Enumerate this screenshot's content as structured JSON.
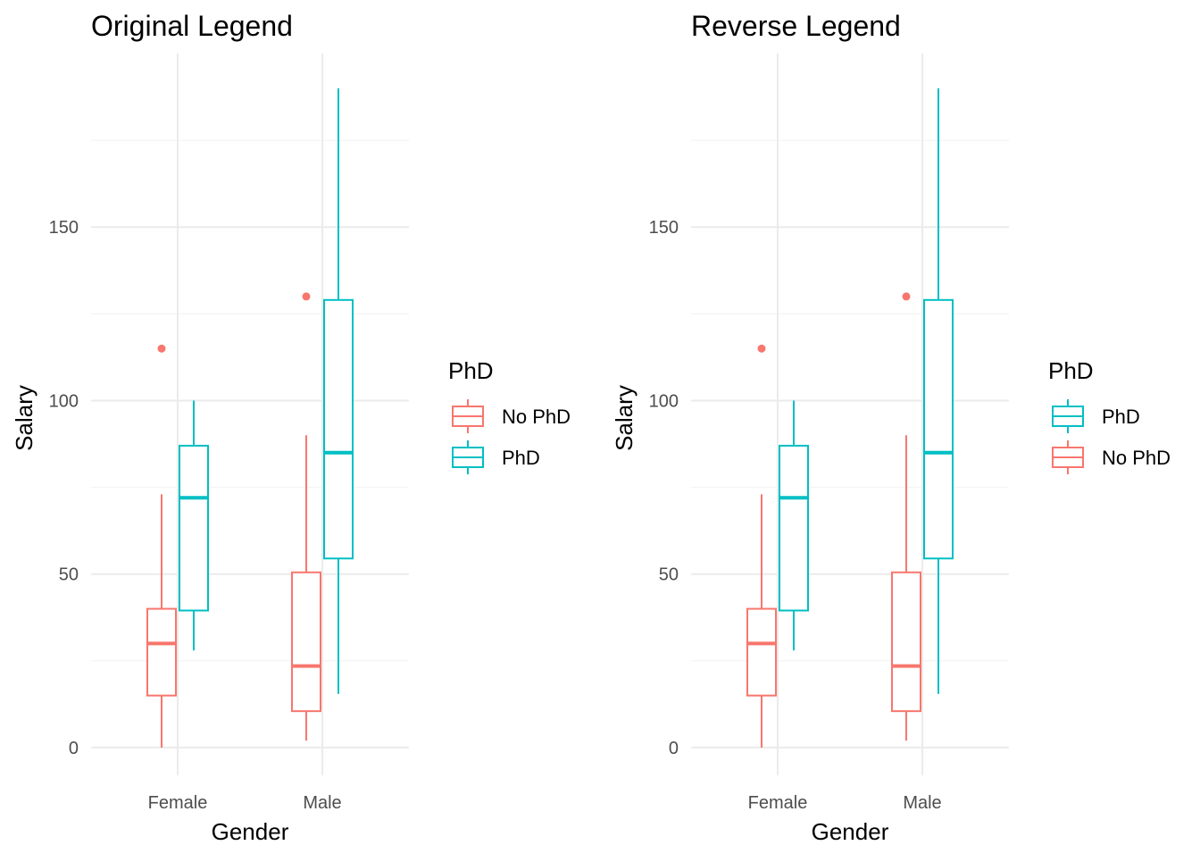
{
  "colors": {
    "no_phd": "#F8766D",
    "phd": "#00BFC4",
    "grid_major": "#EBEBEB",
    "grid_minor": "#F4F4F4",
    "tick_text": "#4D4D4D",
    "title_text": "#000000"
  },
  "chart_data": [
    {
      "type": "boxplot",
      "title": "Original Legend",
      "xlabel": "Gender",
      "ylabel": "Salary",
      "categories": [
        "Female",
        "Male"
      ],
      "ylim": [
        -8,
        200
      ],
      "yticks": [
        0,
        50,
        100,
        150
      ],
      "ytick_labels": [
        "0",
        "50",
        "100",
        "150"
      ],
      "grid": true,
      "legend": {
        "title": "PhD",
        "position": "right",
        "entries": [
          {
            "label": "No PhD",
            "series": "no_phd"
          },
          {
            "label": "PhD",
            "series": "phd"
          }
        ]
      },
      "series": [
        {
          "name": "No PhD",
          "key": "no_phd",
          "boxes": [
            {
              "category": "Female",
              "whisker_low": 0,
              "q1": 15,
              "median": 30,
              "q3": 40,
              "whisker_high": 73,
              "outliers": [
                115
              ]
            },
            {
              "category": "Male",
              "whisker_low": 2,
              "q1": 10.5,
              "median": 23.5,
              "q3": 50.5,
              "whisker_high": 90,
              "outliers": [
                130
              ]
            }
          ]
        },
        {
          "name": "PhD",
          "key": "phd",
          "boxes": [
            {
              "category": "Female",
              "whisker_low": 28,
              "q1": 39.5,
              "median": 72,
              "q3": 87,
              "whisker_high": 100,
              "outliers": []
            },
            {
              "category": "Male",
              "whisker_low": 15.5,
              "q1": 54.5,
              "median": 85,
              "q3": 129,
              "whisker_high": 190,
              "outliers": []
            }
          ]
        }
      ]
    },
    {
      "type": "boxplot",
      "title": "Reverse Legend",
      "xlabel": "Gender",
      "ylabel": "Salary",
      "categories": [
        "Female",
        "Male"
      ],
      "ylim": [
        -8,
        200
      ],
      "yticks": [
        0,
        50,
        100,
        150
      ],
      "ytick_labels": [
        "0",
        "50",
        "100",
        "150"
      ],
      "grid": true,
      "legend": {
        "title": "PhD",
        "position": "right",
        "entries": [
          {
            "label": "PhD",
            "series": "phd"
          },
          {
            "label": "No PhD",
            "series": "no_phd"
          }
        ]
      },
      "series": [
        {
          "name": "No PhD",
          "key": "no_phd",
          "boxes": [
            {
              "category": "Female",
              "whisker_low": 0,
              "q1": 15,
              "median": 30,
              "q3": 40,
              "whisker_high": 73,
              "outliers": [
                115
              ]
            },
            {
              "category": "Male",
              "whisker_low": 2,
              "q1": 10.5,
              "median": 23.5,
              "q3": 50.5,
              "whisker_high": 90,
              "outliers": [
                130
              ]
            }
          ]
        },
        {
          "name": "PhD",
          "key": "phd",
          "boxes": [
            {
              "category": "Female",
              "whisker_low": 28,
              "q1": 39.5,
              "median": 72,
              "q3": 87,
              "whisker_high": 100,
              "outliers": []
            },
            {
              "category": "Male",
              "whisker_low": 15.5,
              "q1": 54.5,
              "median": 85,
              "q3": 129,
              "whisker_high": 190,
              "outliers": []
            }
          ]
        }
      ]
    }
  ]
}
